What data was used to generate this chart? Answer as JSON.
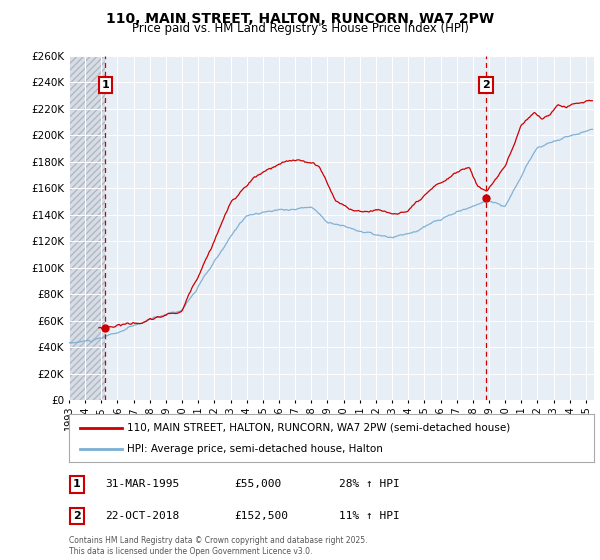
{
  "title": "110, MAIN STREET, HALTON, RUNCORN, WA7 2PW",
  "subtitle": "Price paid vs. HM Land Registry's House Price Index (HPI)",
  "legend_entries": [
    "110, MAIN STREET, HALTON, RUNCORN, WA7 2PW (semi-detached house)",
    "HPI: Average price, semi-detached house, Halton"
  ],
  "line_colors": [
    "#cc0000",
    "#7aafd4"
  ],
  "marker1_date": 1995.247,
  "marker1_value": 55000,
  "marker2_date": 2018.81,
  "marker2_value": 152500,
  "ylim": [
    0,
    260000
  ],
  "xlim_start": 1993.0,
  "xlim_end": 2025.5,
  "ytick_step": 20000,
  "plot_bg": "#e8eef5",
  "hatch_bg": "#d8dde5",
  "grid_color": "#ffffff",
  "marker1_text": "31-MAR-1995",
  "marker1_price": "£55,000",
  "marker1_hpi": "28% ↑ HPI",
  "marker2_text": "22-OCT-2018",
  "marker2_price": "£152,500",
  "marker2_hpi": "11% ↑ HPI",
  "footer": "Contains HM Land Registry data © Crown copyright and database right 2025.\nThis data is licensed under the Open Government Licence v3.0."
}
